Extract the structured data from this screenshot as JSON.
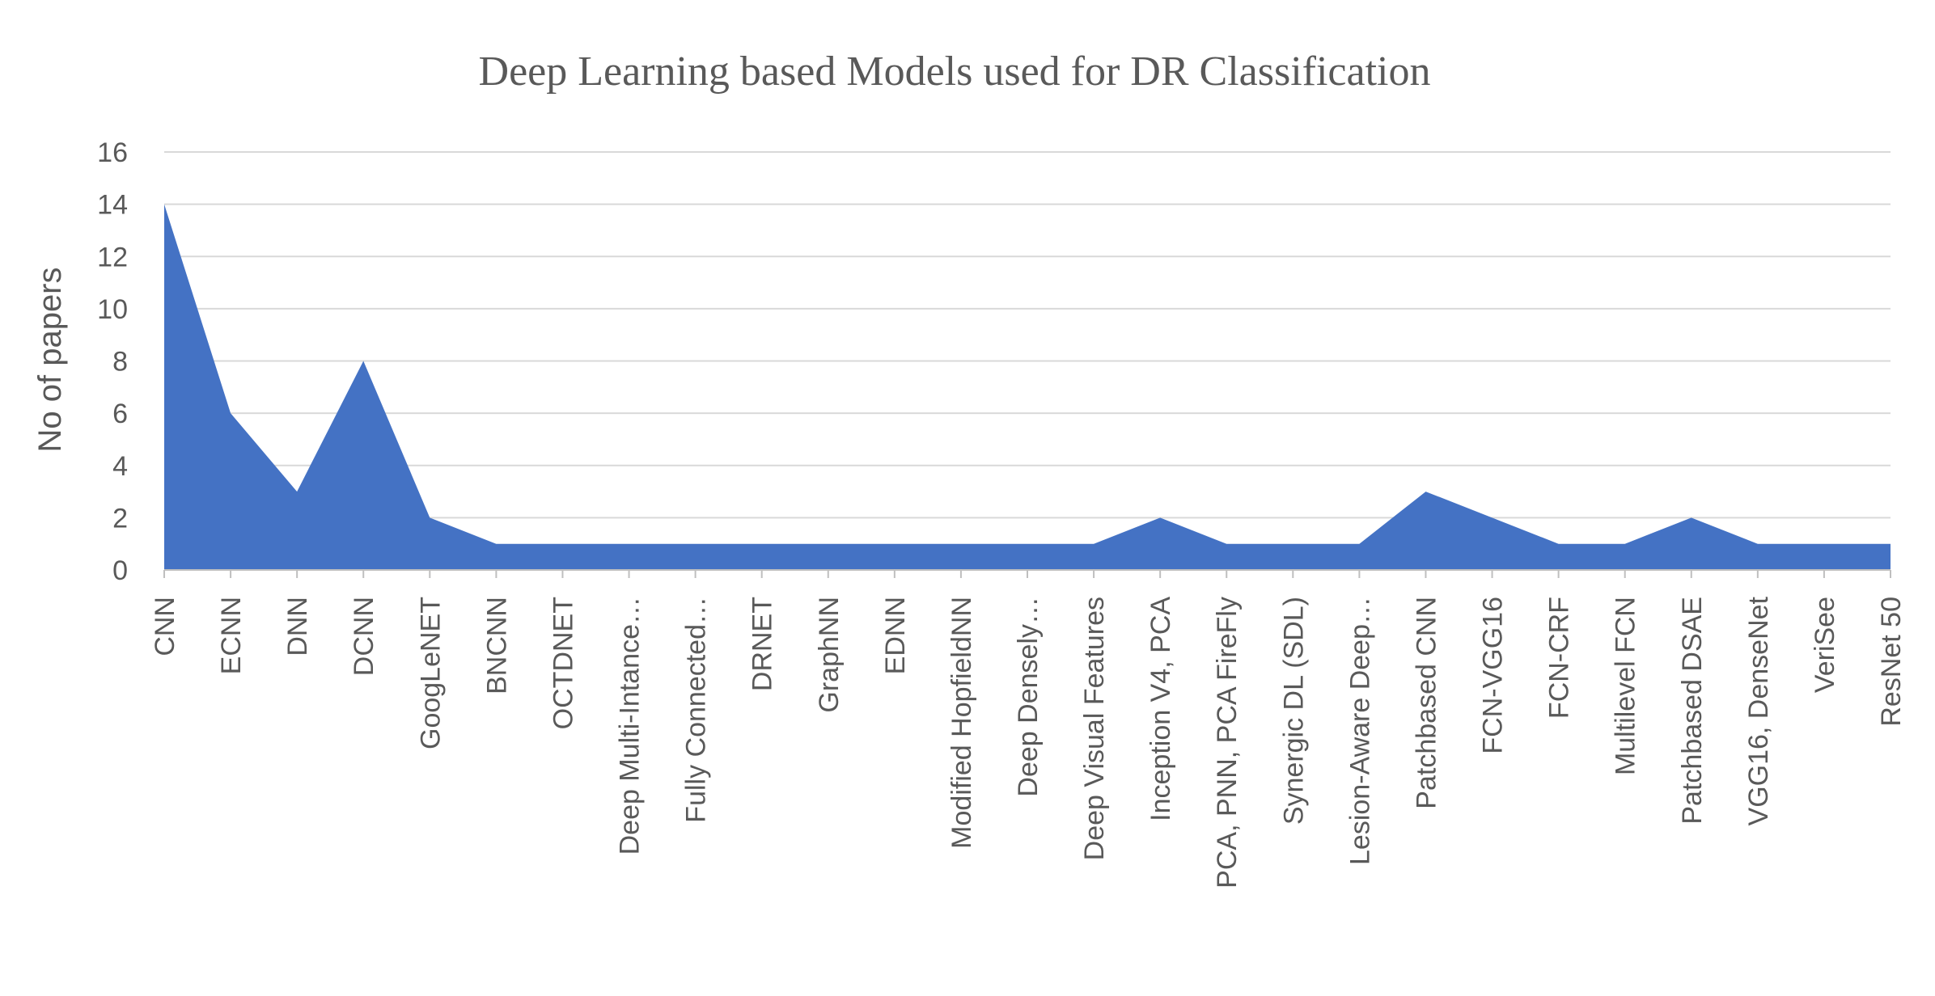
{
  "chart_data": {
    "type": "area",
    "title": "Deep Learning based Models used for DR Classification",
    "xlabel": "",
    "ylabel": "No of papers",
    "ylim": [
      0,
      16
    ],
    "yticks": [
      0,
      2,
      4,
      6,
      8,
      10,
      12,
      14,
      16
    ],
    "grid": true,
    "legend": "none",
    "color": "#4472C4",
    "categories": [
      "CNN",
      "ECNN",
      "DNN",
      "DCNN",
      "GoogLeNET",
      "BNCNN",
      "OCTDNET",
      "Deep Multi-Intance…",
      "Fully Connected…",
      "DRNET",
      "GraphNN",
      "EDNN",
      "Modified HopfieldNN",
      "Deep  Densely…",
      "Deep Visual Features",
      "Inception V4, PCA",
      "PCA, PNN, PCA FireFly",
      "Synergic DL (SDL)",
      "Lesion-Aware Deep…",
      "Patchbased CNN",
      "FCN-VGG16",
      "FCN-CRF",
      "Multilevel FCN",
      "Patchbased DSAE",
      "VGG16, DenseNet",
      "VeriSee",
      "ResNet 50"
    ],
    "values": [
      14,
      6,
      3,
      8,
      2,
      1,
      1,
      1,
      1,
      1,
      1,
      1,
      1,
      1,
      1,
      2,
      1,
      1,
      1,
      3,
      2,
      1,
      1,
      2,
      1,
      1,
      1
    ]
  }
}
